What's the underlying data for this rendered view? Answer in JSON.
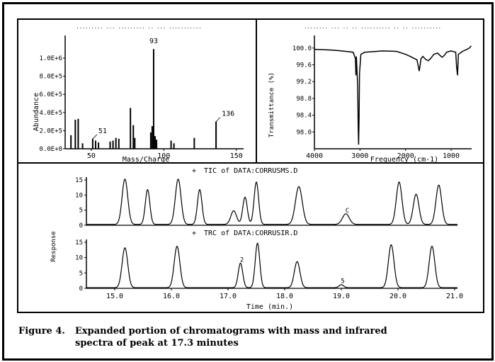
{
  "caption": {
    "label": "Figure 4.",
    "line1": "Expanded portion of chromatograms with mass and infrared",
    "line2": "spectra of peak at 17.3 minutes"
  },
  "chart_data": [
    {
      "type": "bar",
      "name": "mass-spectrum",
      "header": "......... ... ......... .. ... ...........",
      "xlabel": "Mass/Charge",
      "ylabel": "Abundance",
      "xlim": [
        32,
        155
      ],
      "ylim": [
        0,
        1250000.0
      ],
      "x_ticks": [
        "50",
        "100",
        "150"
      ],
      "x_tick_values": [
        50,
        100,
        150
      ],
      "y_ticks": [
        "0.0E+0",
        "2.0E+5",
        "4.0E+5",
        "6.0E+5",
        "8.0E+5",
        "1.0E+6"
      ],
      "y_tick_values": [
        0,
        200000,
        400000,
        600000,
        800000,
        1000000
      ],
      "peak_labels": [
        "51",
        "93",
        "136"
      ],
      "peaks": [
        {
          "x": 36,
          "y": 150000
        },
        {
          "x": 39,
          "y": 320000
        },
        {
          "x": 41,
          "y": 330000
        },
        {
          "x": 44,
          "y": 60000
        },
        {
          "x": 51,
          "y": 110000
        },
        {
          "x": 53,
          "y": 90000
        },
        {
          "x": 55,
          "y": 70000
        },
        {
          "x": 63,
          "y": 80000
        },
        {
          "x": 65,
          "y": 90000
        },
        {
          "x": 67,
          "y": 120000
        },
        {
          "x": 69,
          "y": 110000
        },
        {
          "x": 77,
          "y": 450000
        },
        {
          "x": 79,
          "y": 260000
        },
        {
          "x": 80,
          "y": 120000
        },
        {
          "x": 91,
          "y": 180000
        },
        {
          "x": 92,
          "y": 250000
        },
        {
          "x": 93,
          "y": 1100000
        },
        {
          "x": 94,
          "y": 140000
        },
        {
          "x": 95,
          "y": 100000
        },
        {
          "x": 105,
          "y": 90000
        },
        {
          "x": 107,
          "y": 60000
        },
        {
          "x": 121,
          "y": 120000
        },
        {
          "x": 136,
          "y": 300000
        }
      ]
    },
    {
      "type": "line",
      "name": "infrared-spectrum",
      "header": "........ ... .. .. .......... .. .. ..........",
      "xlabel": "Frequency (cm-1)",
      "ylabel": "Transmittance (%)",
      "xlim": [
        4000,
        550
      ],
      "ylim": [
        97.6,
        100.3
      ],
      "x_ticks": [
        "4000",
        "3000",
        "2000",
        "1000"
      ],
      "x_tick_values": [
        4000,
        3000,
        2000,
        1000
      ],
      "y_ticks": [
        "98.0",
        "98.4",
        "98.8",
        "99.2",
        "99.6",
        "100.0"
      ],
      "y_tick_values": [
        98.0,
        98.4,
        98.8,
        99.2,
        99.6,
        100.0
      ],
      "points": [
        [
          4000,
          99.97
        ],
        [
          3600,
          99.95
        ],
        [
          3400,
          99.93
        ],
        [
          3150,
          99.9
        ],
        [
          3100,
          99.75
        ],
        [
          3090,
          99.35
        ],
        [
          3080,
          99.8
        ],
        [
          3050,
          99.1
        ],
        [
          3040,
          98.1
        ],
        [
          3030,
          97.7
        ],
        [
          3020,
          98.4
        ],
        [
          3010,
          99.4
        ],
        [
          2980,
          99.85
        ],
        [
          2900,
          99.9
        ],
        [
          2500,
          99.93
        ],
        [
          2200,
          99.92
        ],
        [
          2000,
          99.85
        ],
        [
          1900,
          99.8
        ],
        [
          1750,
          99.72
        ],
        [
          1700,
          99.45
        ],
        [
          1660,
          99.75
        ],
        [
          1620,
          99.8
        ],
        [
          1550,
          99.72
        ],
        [
          1500,
          99.7
        ],
        [
          1450,
          99.75
        ],
        [
          1380,
          99.85
        ],
        [
          1300,
          99.88
        ],
        [
          1200,
          99.78
        ],
        [
          1150,
          99.82
        ],
        [
          1100,
          99.9
        ],
        [
          1000,
          99.93
        ],
        [
          900,
          99.9
        ],
        [
          880,
          99.55
        ],
        [
          860,
          99.35
        ],
        [
          840,
          99.85
        ],
        [
          750,
          99.92
        ],
        [
          650,
          99.97
        ],
        [
          600,
          100.0
        ],
        [
          560,
          100.05
        ]
      ]
    },
    {
      "type": "line",
      "name": "chromatograms",
      "xlabel": "Time (min.)",
      "ylabel": "Response",
      "xlim": [
        14.5,
        21.05
      ],
      "x_ticks": [
        "15.0",
        "16.0",
        "17.0",
        "18.0",
        "19.0",
        "20.0",
        "21.0"
      ],
      "x_tick_values": [
        15.0,
        16.0,
        17.0,
        18.0,
        19.0,
        20.0,
        21.0
      ],
      "y_ticks": [
        "0",
        "5",
        "10",
        "15"
      ],
      "y_tick_values": [
        0,
        5,
        10,
        15
      ],
      "series": [
        {
          "name": "TIC of DATA:CORRUSMS.D",
          "marker": "+",
          "baseline": 0.3,
          "peaks": [
            {
              "t": 15.18,
              "h": 15.0,
              "w": 0.05,
              "label": ""
            },
            {
              "t": 15.58,
              "h": 11.5,
              "w": 0.04,
              "label": ""
            },
            {
              "t": 16.12,
              "h": 15.0,
              "w": 0.05,
              "label": ""
            },
            {
              "t": 16.5,
              "h": 11.5,
              "w": 0.04,
              "label": ""
            },
            {
              "t": 17.1,
              "h": 4.5,
              "w": 0.05,
              "label": ""
            },
            {
              "t": 17.3,
              "h": 9.0,
              "w": 0.04,
              "label": ""
            },
            {
              "t": 17.5,
              "h": 14.0,
              "w": 0.04,
              "label": ""
            },
            {
              "t": 18.25,
              "h": 12.5,
              "w": 0.06,
              "label": ""
            },
            {
              "t": 19.08,
              "h": 3.5,
              "w": 0.06,
              "label": "C"
            },
            {
              "t": 20.02,
              "h": 14.0,
              "w": 0.05,
              "label": ""
            },
            {
              "t": 20.32,
              "h": 10.0,
              "w": 0.05,
              "label": ""
            },
            {
              "t": 20.72,
              "h": 13.0,
              "w": 0.05,
              "label": ""
            }
          ]
        },
        {
          "name": "TRC of DATA:CORRUSIR.D",
          "marker": "+",
          "baseline": 0.2,
          "peaks": [
            {
              "t": 15.18,
              "h": 13.0,
              "w": 0.05,
              "label": ""
            },
            {
              "t": 16.1,
              "h": 13.5,
              "w": 0.05,
              "label": ""
            },
            {
              "t": 17.22,
              "h": 8.0,
              "w": 0.04,
              "label": "2"
            },
            {
              "t": 17.52,
              "h": 14.5,
              "w": 0.04,
              "label": ""
            },
            {
              "t": 18.22,
              "h": 8.5,
              "w": 0.05,
              "label": ""
            },
            {
              "t": 19.0,
              "h": 1.0,
              "w": 0.04,
              "label": "5"
            },
            {
              "t": 19.88,
              "h": 14.0,
              "w": 0.05,
              "label": ""
            },
            {
              "t": 20.6,
              "h": 13.5,
              "w": 0.05,
              "label": ""
            }
          ]
        }
      ]
    }
  ]
}
